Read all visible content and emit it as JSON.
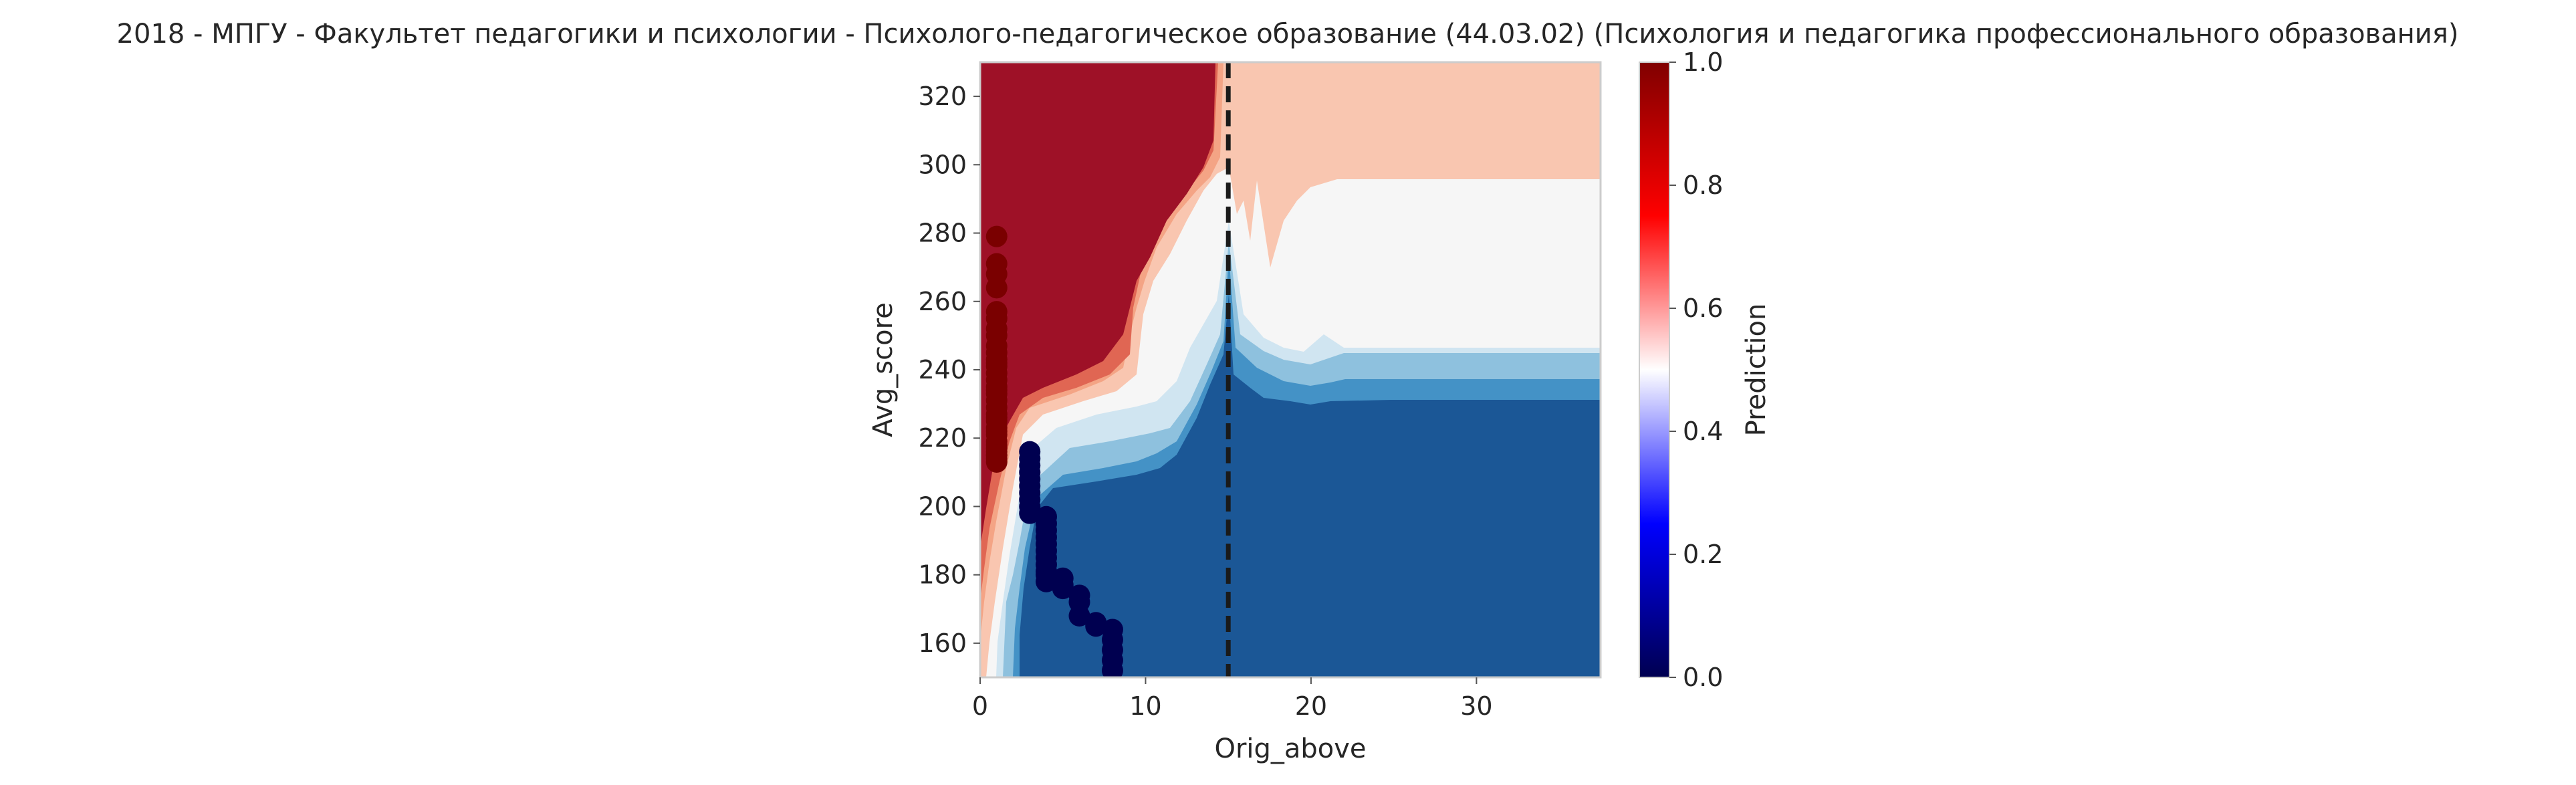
{
  "figure": {
    "title": "2018 - МПГУ - Факультет педагогики и психологии - Психолого-педагогическое образование (44.03.02) (Психология и педагогика профессионального образования)"
  },
  "chart_data": {
    "type": "heatmap",
    "title": "2018 - МПГУ - Факультет педагогики и психологии - Психолого-педагогическое образование (44.03.02) (Психология и педагогика профессионального образования)",
    "xlabel": "Orig_above",
    "ylabel": "Avg_score",
    "xlim": [
      0,
      37.5
    ],
    "ylim": [
      150,
      330
    ],
    "x_ticks": [
      "0",
      "10",
      "20",
      "30"
    ],
    "y_ticks": [
      "160",
      "180",
      "200",
      "220",
      "240",
      "260",
      "280",
      "300",
      "320"
    ],
    "grid": false,
    "colormap": "seismic",
    "colorbar": {
      "label": "Prediction",
      "range": [
        0,
        1
      ],
      "ticks": [
        "0.0",
        "0.2",
        "0.4",
        "0.6",
        "0.8",
        "1.0"
      ]
    },
    "contour_levels": [
      {
        "level": 0.1,
        "color": "#1b5796"
      },
      {
        "level": 0.2,
        "color": "#4492c6"
      },
      {
        "level": 0.3,
        "color": "#8ec1de"
      },
      {
        "level": 0.4,
        "color": "#d0e5f1"
      },
      {
        "level": 0.5,
        "color": "#f6f6f6"
      },
      {
        "level": 0.6,
        "color": "#f9c6b0"
      },
      {
        "level": 0.7,
        "color": "#f4a485"
      },
      {
        "level": 0.8,
        "color": "#e06653"
      },
      {
        "level": 0.9,
        "color": "#9e1127"
      }
    ],
    "threshold_line": {
      "x": 15,
      "style": "dashed",
      "color": "#1a1a1a"
    },
    "points_class_1": {
      "color": "#7a0000",
      "x": [
        1,
        1,
        1,
        1,
        1,
        1,
        1,
        1,
        1,
        1,
        1,
        1,
        1,
        1,
        1,
        1,
        1,
        1,
        1,
        1,
        1,
        1,
        1,
        1,
        1,
        1,
        1,
        1,
        1,
        1,
        1,
        1,
        1,
        1
      ],
      "y": [
        279,
        271,
        268,
        264,
        257,
        255,
        252,
        250,
        247,
        245,
        243,
        241,
        239,
        237,
        235,
        233,
        231,
        229,
        227,
        225,
        223,
        221,
        219,
        218,
        217,
        216,
        215,
        215,
        214,
        213,
        222,
        226,
        234,
        242
      ]
    },
    "points_class_0": {
      "color": "#000050",
      "x": [
        3,
        3,
        3,
        3,
        3,
        3,
        3,
        3,
        3,
        3,
        4,
        4,
        4,
        4,
        4,
        4,
        4,
        4,
        4,
        4,
        4,
        5,
        5,
        5,
        6,
        6,
        6,
        7,
        7,
        8,
        8,
        8,
        8,
        8
      ],
      "y": [
        216,
        214,
        212,
        210,
        208,
        206,
        204,
        202,
        200,
        198,
        197,
        195,
        193,
        191,
        189,
        187,
        185,
        183,
        181,
        180,
        178,
        179,
        177,
        176,
        174,
        172,
        168,
        166,
        165,
        164,
        161,
        158,
        155,
        152
      ]
    }
  }
}
